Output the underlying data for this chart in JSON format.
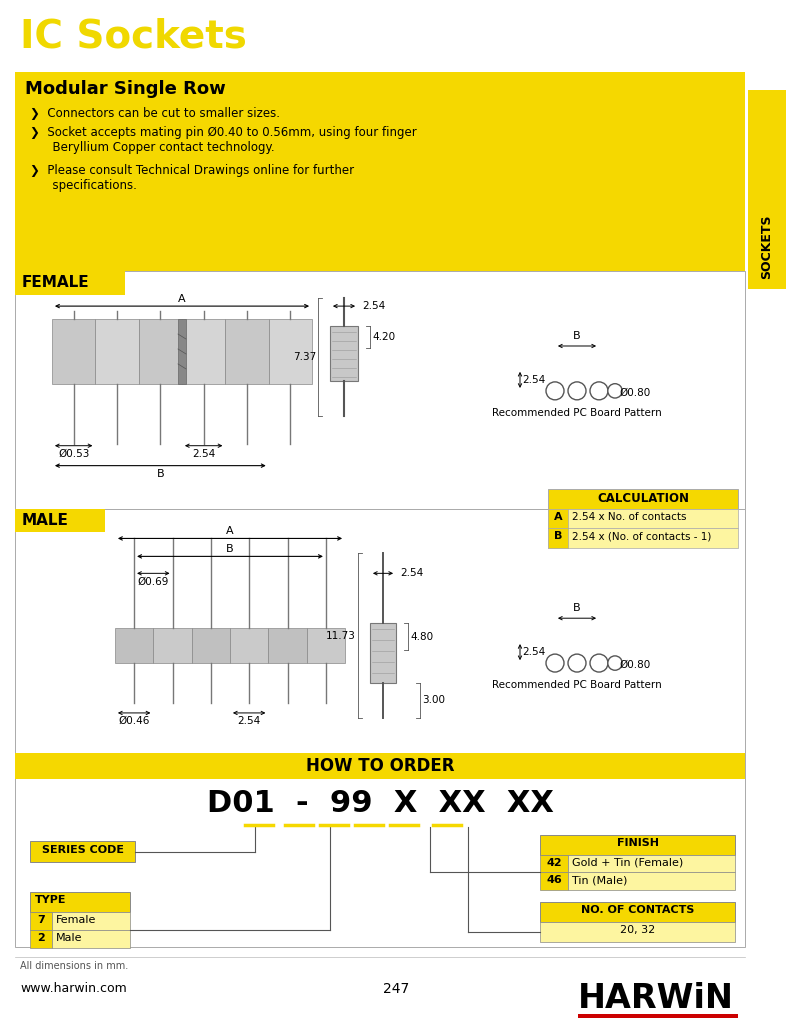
{
  "page_bg": "#ffffff",
  "title": "IC Sockets",
  "title_color": "#f0d800",
  "yellow": "#f5d800",
  "yellow_light": "#fdf5a0",
  "section_title": "Modular Single Row",
  "bullets": [
    "❯  Connectors can be cut to smaller sizes.",
    "❯  Socket accepts mating pin Ø0.40 to 0.56mm, using four finger\n      Beryllium Copper contact technology.",
    "❯  Please consult Technical Drawings online for further\n      specifications."
  ],
  "sockets_tab": "SOCKETS",
  "female_label": "FEMALE",
  "male_label": "MALE",
  "f_A": "A",
  "f_B": "B",
  "f_d1": "Ø0.53",
  "f_d2": "2.54",
  "f_h1": "7.37",
  "f_h2": "4.20",
  "f_w": "2.54",
  "f_pc_B": "B",
  "f_pc_254": "2.54",
  "f_pc_hole": "Ø0.80",
  "f_pc_label": "Recommended PC Board Pattern",
  "m_A": "A",
  "m_B": "B",
  "m_d1": "Ø0.69",
  "m_d2": "2.54",
  "m_d3": "Ø0.46",
  "m_h1": "11.73",
  "m_h2": "4.80",
  "m_h3": "3.00",
  "m_w": "2.54",
  "m_pc_B": "B",
  "m_pc_254": "2.54",
  "m_pc_hole": "Ø0.80",
  "m_pc_label": "Recommended PC Board Pattern",
  "calc_title": "CALCULATION",
  "calc_A": "2.54 x No. of contacts",
  "calc_B": "2.54 x (No. of contacts - 1)",
  "hto_title": "HOW TO ORDER",
  "order_code": "D01  -  99  X  XX  XX",
  "sc_label": "SERIES CODE",
  "type_label": "TYPE",
  "type_rows": [
    [
      "7",
      "Female"
    ],
    [
      "2",
      "Male"
    ]
  ],
  "finish_label": "FINISH",
  "finish_rows": [
    [
      "42",
      "Gold + Tin (Female)"
    ],
    [
      "46",
      "Tin (Male)"
    ]
  ],
  "noc_label": "NO. OF CONTACTS",
  "noc_val": "20, 32",
  "footer_note": "All dimensions in mm.",
  "footer_page": "247",
  "footer_url": "www.harwin.com",
  "harwin": "HARWiN"
}
